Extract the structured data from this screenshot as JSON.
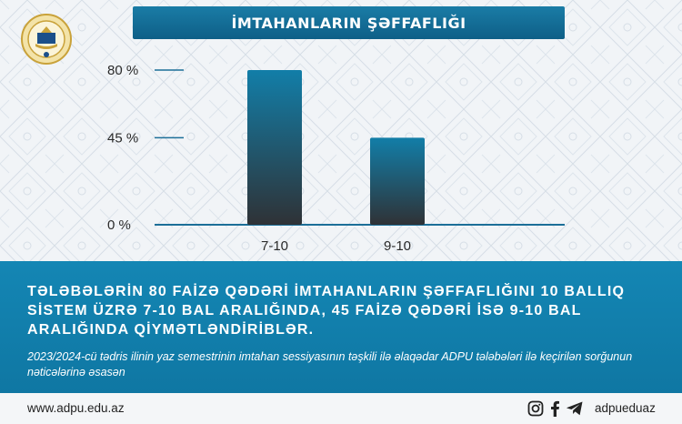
{
  "header": {
    "logo_icon": "adpu-emblem-icon"
  },
  "chart_data": {
    "type": "bar",
    "title": "İMTAHANLARIN ŞƏFFAFLIĞI",
    "categories": [
      "7-10",
      "9-10"
    ],
    "values": [
      80,
      45
    ],
    "yticks": [
      {
        "value": 0,
        "label": "0 %"
      },
      {
        "value": 45,
        "label": "45 %"
      },
      {
        "value": 80,
        "label": "80 %"
      }
    ],
    "ylim": [
      0,
      80
    ],
    "grid": false,
    "colors": {
      "bar_top": "#127ea8",
      "bar_bottom": "#2f3236",
      "axis": "#1c6f98",
      "tick_text": "#2a2a2a"
    }
  },
  "band": {
    "main_text": "TƏLƏBƏLƏRİN 80 FAİZƏ QƏDƏRİ İMTAHANLARIN ŞƏFFAFLIĞINI 10 BALLIQ SİSTEM ÜZRƏ 7-10 BAL ARALIĞINDA, 45 FAİZƏ QƏDƏRİ İSƏ 9-10 BAL ARALIĞINDA QİYMƏTLƏNDİRİBLƏR.",
    "sub_text": "2023/2024-cü tədris ilinin yaz semestrinin imtahan sessiyasının təşkili ilə əlaqədar ADPU tələbələri ilə keçirilən sorğunun nəticələrinə əsasən",
    "color": "#1283b1"
  },
  "footer": {
    "website": "www.adpu.edu.az",
    "social_icons": [
      "instagram-icon",
      "facebook-icon",
      "telegram-icon"
    ],
    "handle": "adpueduaz"
  }
}
